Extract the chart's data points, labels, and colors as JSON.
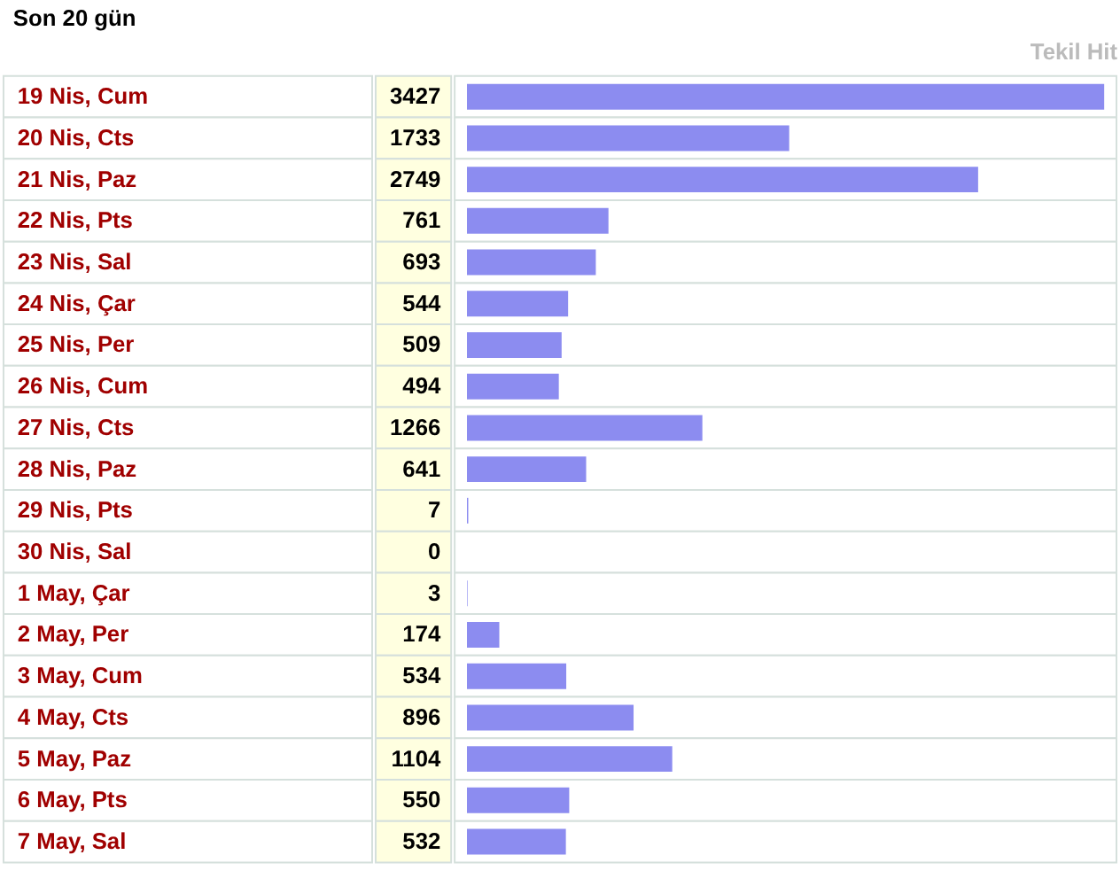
{
  "chart_data": {
    "type": "bar",
    "orientation": "horizontal",
    "title": "Son 20 gün",
    "xlabel": "Tekil Hit",
    "categories": [
      "19 Nis, Cum",
      "20 Nis, Cts",
      "21 Nis, Paz",
      "22 Nis, Pts",
      "23 Nis, Sal",
      "24 Nis, Çar",
      "25 Nis, Per",
      "26 Nis, Cum",
      "27 Nis, Cts",
      "28 Nis, Paz",
      "29 Nis, Pts",
      "30 Nis, Sal",
      "1 May, Çar",
      "2 May, Per",
      "3 May, Cum",
      "4 May, Cts",
      "5 May, Paz",
      "6 May, Pts",
      "7 May, Sal"
    ],
    "values": [
      3427,
      1733,
      2749,
      761,
      693,
      544,
      509,
      494,
      1266,
      641,
      7,
      0,
      3,
      174,
      534,
      896,
      1104,
      550,
      532
    ],
    "color": "#8c8cf0",
    "data_labels": true
  }
}
